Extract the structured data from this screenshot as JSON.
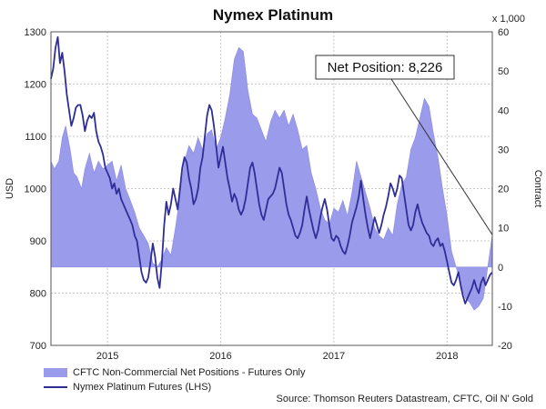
{
  "chart_data": {
    "type": "line",
    "title": "Nymex Platinum",
    "left_axis": {
      "label": "USD",
      "ylim": [
        700,
        1300
      ],
      "ticks": [
        700,
        800,
        900,
        1000,
        1100,
        1200,
        1300
      ]
    },
    "right_axis": {
      "label": "Contract",
      "multiplier_label": "x 1,000",
      "ylim": [
        -20,
        60
      ],
      "ticks": [
        -20,
        -10,
        0,
        10,
        20,
        30,
        40,
        50,
        60
      ]
    },
    "x_axis": {
      "range": [
        2014.5,
        2018.4
      ],
      "ticks": [
        {
          "label": "2015",
          "x": 2015.0
        },
        {
          "label": "2016",
          "x": 2016.0
        },
        {
          "label": "2017",
          "x": 2017.0
        },
        {
          "label": "2018",
          "x": 2018.0
        }
      ]
    },
    "grid": true,
    "annotation": {
      "text": "Net Position: 8,226",
      "x": 2018.4,
      "value": 8.226
    },
    "series": [
      {
        "name": "CFTC Non-Commercial Net Positions - Futures Only",
        "type": "area",
        "axis": "right",
        "color": "#9b9bec",
        "baseline": 0,
        "points": [
          [
            2014.5,
            27
          ],
          [
            2014.53,
            25
          ],
          [
            2014.57,
            27
          ],
          [
            2014.6,
            33
          ],
          [
            2014.63,
            36
          ],
          [
            2014.67,
            30
          ],
          [
            2014.7,
            24
          ],
          [
            2014.73,
            23
          ],
          [
            2014.77,
            20
          ],
          [
            2014.8,
            25
          ],
          [
            2014.84,
            29
          ],
          [
            2014.88,
            24
          ],
          [
            2014.92,
            27
          ],
          [
            2014.96,
            25
          ],
          [
            2015.0,
            26
          ],
          [
            2015.04,
            27
          ],
          [
            2015.08,
            22
          ],
          [
            2015.12,
            26
          ],
          [
            2015.16,
            20
          ],
          [
            2015.2,
            17
          ],
          [
            2015.24,
            14
          ],
          [
            2015.28,
            10
          ],
          [
            2015.32,
            8
          ],
          [
            2015.36,
            6
          ],
          [
            2015.4,
            1
          ],
          [
            2015.44,
            0
          ],
          [
            2015.48,
            2
          ],
          [
            2015.52,
            5
          ],
          [
            2015.56,
            3
          ],
          [
            2015.6,
            10
          ],
          [
            2015.64,
            18
          ],
          [
            2015.68,
            27
          ],
          [
            2015.72,
            31
          ],
          [
            2015.76,
            29
          ],
          [
            2015.8,
            33
          ],
          [
            2015.84,
            30
          ],
          [
            2015.88,
            34
          ],
          [
            2015.92,
            35
          ],
          [
            2015.96,
            30
          ],
          [
            2016.0,
            33
          ],
          [
            2016.04,
            38
          ],
          [
            2016.08,
            44
          ],
          [
            2016.12,
            53
          ],
          [
            2016.16,
            56
          ],
          [
            2016.2,
            55
          ],
          [
            2016.24,
            45
          ],
          [
            2016.28,
            39
          ],
          [
            2016.32,
            38
          ],
          [
            2016.36,
            35
          ],
          [
            2016.4,
            32
          ],
          [
            2016.44,
            37
          ],
          [
            2016.48,
            40
          ],
          [
            2016.52,
            38
          ],
          [
            2016.56,
            40
          ],
          [
            2016.6,
            36
          ],
          [
            2016.64,
            39
          ],
          [
            2016.68,
            35
          ],
          [
            2016.72,
            30
          ],
          [
            2016.76,
            31
          ],
          [
            2016.8,
            24
          ],
          [
            2016.84,
            20
          ],
          [
            2016.88,
            15
          ],
          [
            2016.92,
            12
          ],
          [
            2016.96,
            11
          ],
          [
            2017.0,
            15
          ],
          [
            2017.04,
            14
          ],
          [
            2017.08,
            17
          ],
          [
            2017.12,
            13
          ],
          [
            2017.16,
            19
          ],
          [
            2017.2,
            27
          ],
          [
            2017.24,
            23
          ],
          [
            2017.28,
            19
          ],
          [
            2017.32,
            15
          ],
          [
            2017.36,
            10
          ],
          [
            2017.4,
            8
          ],
          [
            2017.44,
            7
          ],
          [
            2017.48,
            10
          ],
          [
            2017.52,
            8
          ],
          [
            2017.56,
            16
          ],
          [
            2017.6,
            21
          ],
          [
            2017.64,
            23
          ],
          [
            2017.68,
            30
          ],
          [
            2017.72,
            33
          ],
          [
            2017.76,
            38
          ],
          [
            2017.8,
            43
          ],
          [
            2017.84,
            41
          ],
          [
            2017.88,
            34
          ],
          [
            2017.92,
            28
          ],
          [
            2017.96,
            20
          ],
          [
            2018.0,
            13
          ],
          [
            2018.04,
            4
          ],
          [
            2018.08,
            0
          ],
          [
            2018.12,
            -4
          ],
          [
            2018.16,
            -8
          ],
          [
            2018.2,
            -9
          ],
          [
            2018.24,
            -11
          ],
          [
            2018.28,
            -10
          ],
          [
            2018.32,
            -8
          ],
          [
            2018.36,
            0
          ],
          [
            2018.4,
            8.226
          ]
        ]
      },
      {
        "name": "Nymex Platinum Futures (LHS)",
        "type": "line",
        "axis": "left",
        "color": "#2e2e96",
        "points": [
          [
            2014.5,
            1210
          ],
          [
            2014.52,
            1230
          ],
          [
            2014.54,
            1270
          ],
          [
            2014.56,
            1290
          ],
          [
            2014.58,
            1240
          ],
          [
            2014.6,
            1260
          ],
          [
            2014.62,
            1225
          ],
          [
            2014.64,
            1180
          ],
          [
            2014.66,
            1150
          ],
          [
            2014.68,
            1120
          ],
          [
            2014.7,
            1135
          ],
          [
            2014.72,
            1155
          ],
          [
            2014.74,
            1160
          ],
          [
            2014.76,
            1160
          ],
          [
            2014.78,
            1140
          ],
          [
            2014.8,
            1110
          ],
          [
            2014.82,
            1130
          ],
          [
            2014.84,
            1140
          ],
          [
            2014.86,
            1135
          ],
          [
            2014.88,
            1145
          ],
          [
            2014.9,
            1110
          ],
          [
            2014.92,
            1090
          ],
          [
            2014.94,
            1080
          ],
          [
            2014.96,
            1065
          ],
          [
            2014.98,
            1040
          ],
          [
            2015.0,
            1030
          ],
          [
            2015.02,
            1020
          ],
          [
            2015.04,
            1000
          ],
          [
            2015.06,
            1010
          ],
          [
            2015.08,
            990
          ],
          [
            2015.1,
            1000
          ],
          [
            2015.12,
            980
          ],
          [
            2015.14,
            970
          ],
          [
            2015.16,
            960
          ],
          [
            2015.18,
            950
          ],
          [
            2015.2,
            940
          ],
          [
            2015.22,
            930
          ],
          [
            2015.24,
            910
          ],
          [
            2015.26,
            900
          ],
          [
            2015.28,
            870
          ],
          [
            2015.3,
            840
          ],
          [
            2015.32,
            825
          ],
          [
            2015.34,
            820
          ],
          [
            2015.36,
            830
          ],
          [
            2015.38,
            860
          ],
          [
            2015.4,
            895
          ],
          [
            2015.42,
            870
          ],
          [
            2015.44,
            830
          ],
          [
            2015.46,
            810
          ],
          [
            2015.48,
            860
          ],
          [
            2015.5,
            930
          ],
          [
            2015.52,
            975
          ],
          [
            2015.54,
            950
          ],
          [
            2015.56,
            970
          ],
          [
            2015.58,
            1000
          ],
          [
            2015.6,
            980
          ],
          [
            2015.62,
            960
          ],
          [
            2015.64,
            1000
          ],
          [
            2015.66,
            1040
          ],
          [
            2015.68,
            1060
          ],
          [
            2015.7,
            1050
          ],
          [
            2015.72,
            1020
          ],
          [
            2015.74,
            1000
          ],
          [
            2015.76,
            970
          ],
          [
            2015.78,
            980
          ],
          [
            2015.8,
            1000
          ],
          [
            2015.82,
            1040
          ],
          [
            2015.84,
            1060
          ],
          [
            2015.86,
            1100
          ],
          [
            2015.88,
            1140
          ],
          [
            2015.9,
            1160
          ],
          [
            2015.92,
            1150
          ],
          [
            2015.94,
            1120
          ],
          [
            2015.96,
            1080
          ],
          [
            2015.98,
            1040
          ],
          [
            2016.0,
            1060
          ],
          [
            2016.02,
            1080
          ],
          [
            2016.04,
            1050
          ],
          [
            2016.06,
            1020
          ],
          [
            2016.08,
            1000
          ],
          [
            2016.1,
            975
          ],
          [
            2016.12,
            990
          ],
          [
            2016.14,
            980
          ],
          [
            2016.16,
            960
          ],
          [
            2016.18,
            950
          ],
          [
            2016.2,
            960
          ],
          [
            2016.22,
            980
          ],
          [
            2016.24,
            1010
          ],
          [
            2016.26,
            1040
          ],
          [
            2016.28,
            1050
          ],
          [
            2016.3,
            1030
          ],
          [
            2016.32,
            1000
          ],
          [
            2016.34,
            970
          ],
          [
            2016.36,
            950
          ],
          [
            2016.38,
            940
          ],
          [
            2016.4,
            960
          ],
          [
            2016.42,
            980
          ],
          [
            2016.44,
            985
          ],
          [
            2016.46,
            990
          ],
          [
            2016.48,
            1000
          ],
          [
            2016.5,
            1020
          ],
          [
            2016.52,
            1040
          ],
          [
            2016.54,
            1030
          ],
          [
            2016.56,
            1000
          ],
          [
            2016.58,
            970
          ],
          [
            2016.6,
            950
          ],
          [
            2016.62,
            940
          ],
          [
            2016.64,
            925
          ],
          [
            2016.66,
            910
          ],
          [
            2016.68,
            905
          ],
          [
            2016.7,
            915
          ],
          [
            2016.72,
            930
          ],
          [
            2016.74,
            960
          ],
          [
            2016.76,
            985
          ],
          [
            2016.78,
            960
          ],
          [
            2016.8,
            940
          ],
          [
            2016.82,
            920
          ],
          [
            2016.84,
            905
          ],
          [
            2016.86,
            920
          ],
          [
            2016.88,
            945
          ],
          [
            2016.9,
            965
          ],
          [
            2016.92,
            980
          ],
          [
            2016.94,
            960
          ],
          [
            2016.96,
            930
          ],
          [
            2016.98,
            905
          ],
          [
            2017.0,
            900
          ],
          [
            2017.02,
            910
          ],
          [
            2017.04,
            905
          ],
          [
            2017.06,
            890
          ],
          [
            2017.08,
            880
          ],
          [
            2017.1,
            875
          ],
          [
            2017.12,
            890
          ],
          [
            2017.14,
            910
          ],
          [
            2017.16,
            935
          ],
          [
            2017.18,
            950
          ],
          [
            2017.2,
            965
          ],
          [
            2017.22,
            985
          ],
          [
            2017.24,
            1015
          ],
          [
            2017.26,
            980
          ],
          [
            2017.28,
            950
          ],
          [
            2017.3,
            925
          ],
          [
            2017.32,
            905
          ],
          [
            2017.34,
            925
          ],
          [
            2017.36,
            945
          ],
          [
            2017.38,
            930
          ],
          [
            2017.4,
            915
          ],
          [
            2017.42,
            930
          ],
          [
            2017.44,
            950
          ],
          [
            2017.46,
            965
          ],
          [
            2017.48,
            985
          ],
          [
            2017.5,
            1010
          ],
          [
            2017.52,
            1000
          ],
          [
            2017.54,
            985
          ],
          [
            2017.56,
            1000
          ],
          [
            2017.58,
            1025
          ],
          [
            2017.6,
            1020
          ],
          [
            2017.62,
            990
          ],
          [
            2017.64,
            960
          ],
          [
            2017.66,
            930
          ],
          [
            2017.68,
            920
          ],
          [
            2017.7,
            930
          ],
          [
            2017.72,
            955
          ],
          [
            2017.74,
            970
          ],
          [
            2017.76,
            950
          ],
          [
            2017.78,
            935
          ],
          [
            2017.8,
            925
          ],
          [
            2017.82,
            915
          ],
          [
            2017.84,
            910
          ],
          [
            2017.86,
            895
          ],
          [
            2017.88,
            890
          ],
          [
            2017.9,
            900
          ],
          [
            2017.92,
            905
          ],
          [
            2017.94,
            890
          ],
          [
            2017.96,
            895
          ],
          [
            2017.98,
            880
          ],
          [
            2018.0,
            860
          ],
          [
            2018.02,
            840
          ],
          [
            2018.04,
            820
          ],
          [
            2018.06,
            815
          ],
          [
            2018.08,
            825
          ],
          [
            2018.1,
            840
          ],
          [
            2018.12,
            815
          ],
          [
            2018.14,
            795
          ],
          [
            2018.16,
            780
          ],
          [
            2018.18,
            790
          ],
          [
            2018.2,
            800
          ],
          [
            2018.22,
            810
          ],
          [
            2018.24,
            825
          ],
          [
            2018.26,
            810
          ],
          [
            2018.28,
            800
          ],
          [
            2018.3,
            820
          ],
          [
            2018.32,
            830
          ],
          [
            2018.34,
            815
          ],
          [
            2018.36,
            825
          ],
          [
            2018.38,
            835
          ],
          [
            2018.4,
            840
          ]
        ]
      }
    ],
    "source": "Source: Thomson Reuters Datastream, CFTC, Oil N' Gold"
  }
}
